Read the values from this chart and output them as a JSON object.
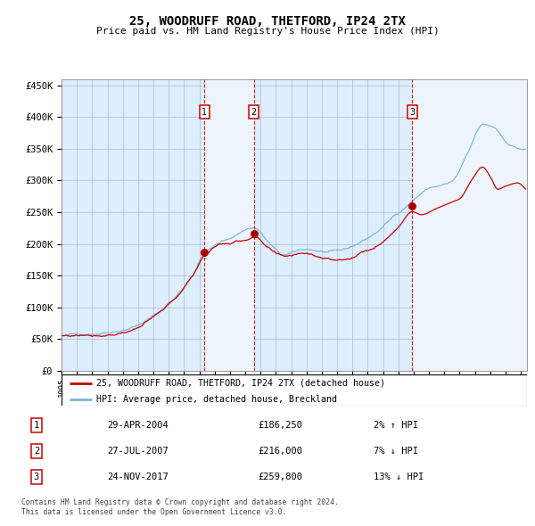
{
  "title": "25, WOODRUFF ROAD, THETFORD, IP24 2TX",
  "subtitle": "Price paid vs. HM Land Registry's House Price Index (HPI)",
  "legend_line1": "25, WOODRUFF ROAD, THETFORD, IP24 2TX (detached house)",
  "legend_line2": "HPI: Average price, detached house, Breckland",
  "footer1": "Contains HM Land Registry data © Crown copyright and database right 2024.",
  "footer2": "This data is licensed under the Open Government Licence v3.0.",
  "hpi_color": "#7ab4d8",
  "price_color": "#cc0000",
  "bg_color": "#ddeeff",
  "white_span_color": "#eef4fb",
  "transactions": [
    {
      "num": 1,
      "date": "29-APR-2004",
      "date_dec": 2004.33,
      "price": 186250,
      "pct": "2%",
      "dir": "↑"
    },
    {
      "num": 2,
      "date": "27-JUL-2007",
      "date_dec": 2007.57,
      "price": 216000,
      "pct": "7%",
      "dir": "↓"
    },
    {
      "num": 3,
      "date": "24-NOV-2017",
      "date_dec": 2017.9,
      "price": 259800,
      "pct": "13%",
      "dir": "↓"
    }
  ],
  "ylim": [
    0,
    460000
  ],
  "yticks": [
    0,
    50000,
    100000,
    150000,
    200000,
    250000,
    300000,
    350000,
    400000,
    450000
  ],
  "xlim_start": 1995.0,
  "xlim_end": 2025.4
}
